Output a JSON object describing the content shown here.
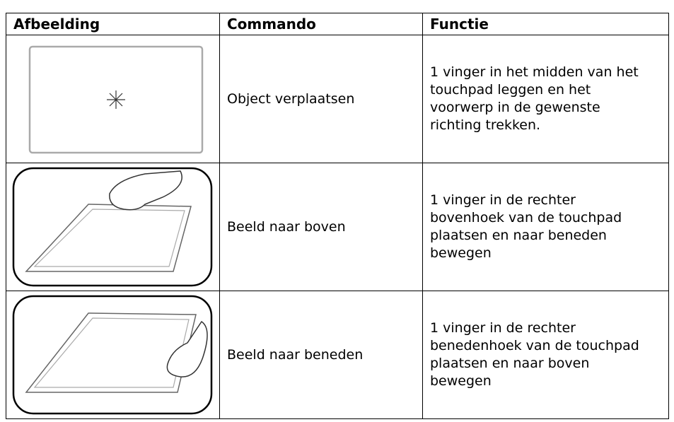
{
  "table": {
    "headers": [
      "Afbeelding",
      "Commando",
      "Functie"
    ],
    "rows": [
      {
        "command": "Object verplaatsen",
        "function": [
          "1 vinger in het midden van het",
          "touchpad leggen en het",
          "voorwerp in de gewenste",
          "richting trekken."
        ]
      },
      {
        "command": "Beeld naar boven",
        "function": [
          "1 vinger in de rechter",
          "bovenhoek van de touchpad",
          "plaatsen en naar beneden",
          "bewegen"
        ]
      },
      {
        "command": "Beeld naar beneden",
        "function": [
          "1 vinger in de rechter",
          "benedenhoek van de touchpad",
          "plaatsen en naar boven",
          "bewegen"
        ]
      }
    ]
  }
}
